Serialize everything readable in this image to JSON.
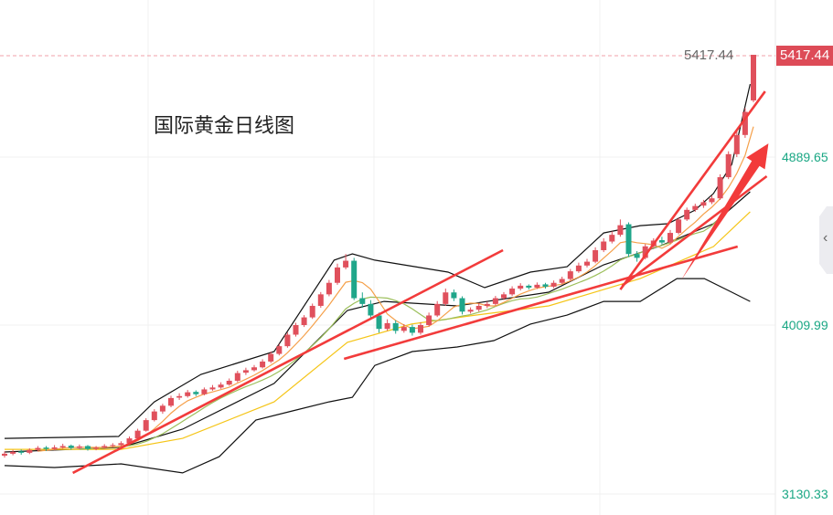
{
  "chart_data": {
    "type": "candlestick",
    "title": "国际黄金日线图",
    "y_ticks": [
      "4889.65",
      "4009.99",
      "3130.33"
    ],
    "y_tick_values": [
      4889.65,
      4009.99,
      3130.33
    ],
    "last_price": "5417.44",
    "last_price_value": 5417.44,
    "grid": true,
    "colors": {
      "up": "#e0505c",
      "down": "#1fa68a",
      "ma5": "#f5a04a",
      "ma10": "#9bbf5a",
      "ma_long": "#f5c518",
      "bands": "#111111",
      "trendline": "#f23b3b",
      "price_line": "#f0a0a8"
    },
    "candles": [
      [
        3330,
        3352,
        3320,
        3340
      ],
      [
        3340,
        3360,
        3332,
        3350
      ],
      [
        3352,
        3362,
        3335,
        3345
      ],
      [
        3345,
        3368,
        3338,
        3360
      ],
      [
        3360,
        3380,
        3352,
        3370
      ],
      [
        3372,
        3380,
        3355,
        3365
      ],
      [
        3365,
        3385,
        3358,
        3373
      ],
      [
        3373,
        3392,
        3366,
        3380
      ],
      [
        3382,
        3388,
        3362,
        3370
      ],
      [
        3370,
        3388,
        3364,
        3378
      ],
      [
        3380,
        3385,
        3356,
        3365
      ],
      [
        3365,
        3380,
        3358,
        3372
      ],
      [
        3372,
        3390,
        3365,
        3380
      ],
      [
        3380,
        3395,
        3372,
        3385
      ],
      [
        3385,
        3405,
        3378,
        3395
      ],
      [
        3395,
        3430,
        3390,
        3420
      ],
      [
        3420,
        3470,
        3415,
        3460
      ],
      [
        3460,
        3525,
        3455,
        3515
      ],
      [
        3515,
        3572,
        3508,
        3560
      ],
      [
        3560,
        3600,
        3548,
        3590
      ],
      [
        3590,
        3642,
        3582,
        3630
      ],
      [
        3632,
        3655,
        3620,
        3640
      ],
      [
        3640,
        3672,
        3632,
        3660
      ],
      [
        3662,
        3670,
        3640,
        3650
      ],
      [
        3650,
        3685,
        3644,
        3675
      ],
      [
        3675,
        3698,
        3668,
        3685
      ],
      [
        3685,
        3712,
        3678,
        3700
      ],
      [
        3700,
        3732,
        3694,
        3720
      ],
      [
        3720,
        3772,
        3712,
        3760
      ],
      [
        3762,
        3788,
        3750,
        3775
      ],
      [
        3775,
        3802,
        3768,
        3790
      ],
      [
        3790,
        3832,
        3784,
        3820
      ],
      [
        3820,
        3872,
        3812,
        3860
      ],
      [
        3860,
        3912,
        3852,
        3900
      ],
      [
        3900,
        3972,
        3892,
        3960
      ],
      [
        3960,
        4022,
        3950,
        4010
      ],
      [
        4010,
        4062,
        4000,
        4050
      ],
      [
        4050,
        4122,
        4042,
        4110
      ],
      [
        4110,
        4182,
        4100,
        4170
      ],
      [
        4170,
        4245,
        4160,
        4230
      ],
      [
        4230,
        4330,
        4220,
        4310
      ],
      [
        4310,
        4380,
        4300,
        4345
      ],
      [
        4345,
        4360,
        4140,
        4150
      ],
      [
        4150,
        4180,
        4100,
        4120
      ],
      [
        4120,
        4140,
        4040,
        4060
      ],
      [
        4060,
        4075,
        3970,
        3990
      ],
      [
        3990,
        4040,
        3980,
        4020
      ],
      [
        4020,
        4035,
        3965,
        3980
      ],
      [
        3980,
        4015,
        3970,
        4000
      ],
      [
        4000,
        4012,
        3955,
        3970
      ],
      [
        3970,
        4025,
        3960,
        4010
      ],
      [
        4010,
        4075,
        4002,
        4060
      ],
      [
        4060,
        4135,
        4052,
        4120
      ],
      [
        4120,
        4200,
        4110,
        4180
      ],
      [
        4180,
        4195,
        4135,
        4150
      ],
      [
        4150,
        4160,
        4065,
        4080
      ],
      [
        4080,
        4102,
        4070,
        4090
      ],
      [
        4090,
        4125,
        4080,
        4110
      ],
      [
        4110,
        4132,
        4098,
        4120
      ],
      [
        4120,
        4162,
        4112,
        4150
      ],
      [
        4150,
        4182,
        4140,
        4170
      ],
      [
        4170,
        4212,
        4162,
        4200
      ],
      [
        4200,
        4228,
        4190,
        4215
      ],
      [
        4215,
        4222,
        4195,
        4205
      ],
      [
        4205,
        4232,
        4198,
        4220
      ],
      [
        4222,
        4230,
        4200,
        4210
      ],
      [
        4210,
        4242,
        4202,
        4230
      ],
      [
        4230,
        4262,
        4222,
        4250
      ],
      [
        4250,
        4302,
        4242,
        4290
      ],
      [
        4290,
        4335,
        4282,
        4320
      ],
      [
        4320,
        4355,
        4310,
        4340
      ],
      [
        4340,
        4415,
        4332,
        4400
      ],
      [
        4400,
        4462,
        4390,
        4445
      ],
      [
        4445,
        4498,
        4435,
        4480
      ],
      [
        4480,
        4560,
        4470,
        4530
      ],
      [
        4535,
        4545,
        4365,
        4380
      ],
      [
        4380,
        4395,
        4340,
        4360
      ],
      [
        4360,
        4432,
        4352,
        4420
      ],
      [
        4420,
        4462,
        4410,
        4450
      ],
      [
        4452,
        4470,
        4430,
        4440
      ],
      [
        4440,
        4505,
        4432,
        4490
      ],
      [
        4490,
        4572,
        4482,
        4560
      ],
      [
        4560,
        4622,
        4552,
        4610
      ],
      [
        4610,
        4642,
        4600,
        4630
      ],
      [
        4632,
        4662,
        4620,
        4650
      ],
      [
        4650,
        4685,
        4640,
        4670
      ],
      [
        4670,
        4795,
        4662,
        4780
      ],
      [
        4780,
        4915,
        4770,
        4900
      ],
      [
        4900,
        5020,
        4885,
        5000
      ],
      [
        5000,
        5140,
        4985,
        5120
      ],
      [
        5180,
        5417.44,
        5170,
        5417.44
      ]
    ],
    "bollinger_upper": [
      [
        0,
        3420
      ],
      [
        13.7,
        3430
      ],
      [
        18,
        3610
      ],
      [
        23.6,
        3753
      ],
      [
        32.4,
        3872
      ],
      [
        39.6,
        4348
      ],
      [
        41.8,
        4381
      ],
      [
        44.5,
        4348
      ],
      [
        53.3,
        4286
      ],
      [
        57.7,
        4205
      ],
      [
        63.2,
        4286
      ],
      [
        67.6,
        4314
      ],
      [
        72,
        4490
      ],
      [
        76.4,
        4528
      ],
      [
        79.7,
        4538
      ],
      [
        83,
        4609
      ],
      [
        85.2,
        4695
      ],
      [
        87.4,
        4847
      ],
      [
        89.6,
        5265
      ]
    ],
    "bollinger_middle": [
      [
        0,
        3349
      ],
      [
        14,
        3373
      ],
      [
        21.4,
        3468
      ],
      [
        32.4,
        3706
      ],
      [
        41.2,
        4086
      ],
      [
        45.6,
        4133
      ],
      [
        54.4,
        4110
      ],
      [
        65.4,
        4181
      ],
      [
        72,
        4324
      ],
      [
        78.6,
        4419
      ],
      [
        85.2,
        4538
      ],
      [
        89.6,
        4704
      ]
    ],
    "bollinger_lower": [
      [
        0,
        3278
      ],
      [
        6,
        3268
      ],
      [
        14,
        3287
      ],
      [
        21.4,
        3240
      ],
      [
        25.8,
        3325
      ],
      [
        30.2,
        3515
      ],
      [
        34.6,
        3563
      ],
      [
        39,
        3610
      ],
      [
        41.8,
        3634
      ],
      [
        44.5,
        3800
      ],
      [
        49,
        3872
      ],
      [
        54.4,
        3896
      ],
      [
        58.8,
        3929
      ],
      [
        63.2,
        4015
      ],
      [
        67.6,
        4062
      ],
      [
        72,
        4133
      ],
      [
        76.4,
        4133
      ],
      [
        80.8,
        4252
      ],
      [
        84.1,
        4252
      ],
      [
        87.4,
        4181
      ],
      [
        89.6,
        4133
      ]
    ],
    "ma_long": [
      [
        0,
        3363
      ],
      [
        14,
        3363
      ],
      [
        21.4,
        3420
      ],
      [
        32.4,
        3610
      ],
      [
        41.2,
        3920
      ],
      [
        48.9,
        4015
      ],
      [
        56.6,
        4062
      ],
      [
        65.4,
        4110
      ],
      [
        76.4,
        4252
      ],
      [
        85.2,
        4419
      ],
      [
        89.6,
        4600
      ]
    ],
    "trendlines": [
      [
        [
          8.2,
          3240
        ],
        [
          59.9,
          4400
        ]
      ],
      [
        [
          40.8,
          3834
        ],
        [
          88.1,
          4419
        ]
      ],
      [
        [
          74,
          4195
        ],
        [
          91.4,
          5227
        ]
      ],
      [
        [
          74.2,
          4214
        ],
        [
          91.6,
          4785
        ]
      ]
    ],
    "arrow": [
      [
        81.3,
        4243
      ],
      [
        91.8,
        4956
      ]
    ]
  }
}
